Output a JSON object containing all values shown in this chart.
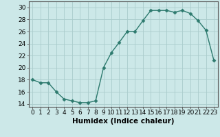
{
  "x": [
    0,
    1,
    2,
    3,
    4,
    5,
    6,
    7,
    8,
    9,
    10,
    11,
    12,
    13,
    14,
    15,
    16,
    17,
    18,
    19,
    20,
    21,
    22,
    23
  ],
  "y": [
    18.0,
    17.5,
    17.5,
    16.0,
    14.8,
    14.5,
    14.2,
    14.2,
    14.5,
    20.0,
    22.5,
    24.2,
    26.0,
    26.0,
    27.8,
    29.5,
    29.5,
    29.5,
    29.2,
    29.5,
    29.0,
    27.8,
    26.2,
    21.2
  ],
  "ylim": [
    13.5,
    31
  ],
  "yticks": [
    14,
    16,
    18,
    20,
    22,
    24,
    26,
    28,
    30
  ],
  "xticks": [
    0,
    1,
    2,
    3,
    4,
    5,
    6,
    7,
    8,
    9,
    10,
    11,
    12,
    13,
    14,
    15,
    16,
    17,
    18,
    19,
    20,
    21,
    22,
    23
  ],
  "xlabel": "Humidex (Indice chaleur)",
  "line_color": "#2d7a6e",
  "marker": "D",
  "marker_size": 2.5,
  "bg_color": "#cce8e8",
  "grid_color_major": "#aacccc",
  "grid_color_minor": "#aacccc",
  "tick_label_fontsize": 6.5,
  "xlabel_fontsize": 7.5
}
